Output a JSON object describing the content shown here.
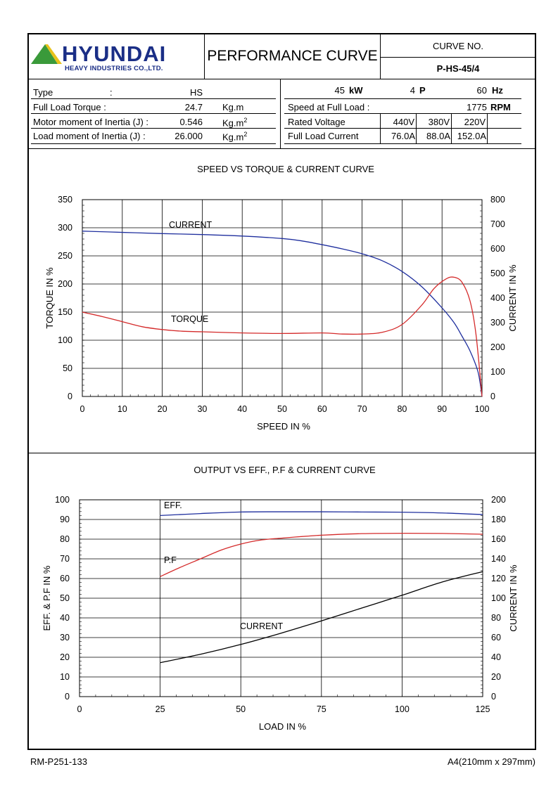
{
  "header": {
    "logo_name": "HYUNDAI",
    "logo_sub": "HEAVY INDUSTRIES CO.,LTD.",
    "title": "PERFORMANCE CURVE",
    "curve_no_label": "CURVE NO.",
    "curve_no": "P-HS-45/4",
    "colors": {
      "logo_blue": "#1a2e86",
      "logo_green": "#3a9a3a",
      "logo_yellow": "#e8c21a"
    }
  },
  "specs_left": [
    {
      "label": "Type",
      "colon": ":",
      "value": "HS",
      "unit": ""
    },
    {
      "label": "Full Load Torque :",
      "colon": "",
      "value": "24.7",
      "unit": "Kg.m"
    },
    {
      "label": "Motor moment of Inertia (J) :",
      "colon": "",
      "value": "0.546",
      "unit": "Kg.m",
      "unit_sup": "2"
    },
    {
      "label": "Load moment of Inertia (J) :",
      "colon": "",
      "value": "26.000",
      "unit": "Kg.m",
      "unit_sup": "2"
    }
  ],
  "specs_right": {
    "power": "45",
    "power_unit": "kW",
    "poles": "4",
    "poles_unit": "P",
    "freq": "60",
    "freq_unit": "Hz",
    "speed_label": "Speed at Full Load :",
    "speed": "1775",
    "speed_unit": "RPM",
    "voltage_label": "Rated Voltage",
    "voltages": [
      "440V",
      "380V",
      "220V"
    ],
    "current_label": "Full Load Current",
    "currents": [
      "76.0A",
      "88.0A",
      "152.0A"
    ]
  },
  "footer": {
    "left": "RM-P251-133",
    "right": "A4(210mm x 297mm)"
  },
  "chart_data": [
    {
      "type": "line",
      "title": "SPEED VS TORQUE & CURRENT CURVE",
      "xlabel": "SPEED IN %",
      "ylabel": "TORQUE IN %",
      "y2label": "CURRENT IN %",
      "xlim": [
        0,
        100
      ],
      "ylim": [
        0,
        350
      ],
      "y2lim": [
        0,
        800
      ],
      "xticks": [
        0,
        10,
        20,
        30,
        40,
        50,
        60,
        70,
        80,
        90,
        100
      ],
      "yticks": [
        0,
        50,
        100,
        150,
        200,
        250,
        300,
        350
      ],
      "y2ticks": [
        0,
        100,
        200,
        300,
        400,
        500,
        600,
        700,
        800
      ],
      "grid": true,
      "series": [
        {
          "name": "CURRENT",
          "axis": "y2",
          "color": "#1f2f9e",
          "x": [
            0,
            10,
            20,
            30,
            40,
            50,
            55,
            60,
            65,
            70,
            75,
            80,
            85,
            90,
            93,
            95,
            97,
            99,
            100
          ],
          "y": [
            672,
            667,
            662,
            658,
            652,
            642,
            632,
            617,
            600,
            580,
            552,
            508,
            445,
            360,
            300,
            245,
            185,
            100,
            0
          ]
        },
        {
          "name": "TORQUE",
          "axis": "y",
          "color": "#d42a2a",
          "x": [
            0,
            5,
            10,
            15,
            20,
            25,
            30,
            40,
            50,
            60,
            65,
            70,
            75,
            80,
            85,
            88,
            91,
            93,
            95,
            97,
            98.5,
            100
          ],
          "y": [
            150,
            142,
            133,
            124,
            119,
            116,
            115,
            113,
            112,
            113,
            111,
            111,
            114,
            128,
            163,
            192,
            209,
            212,
            203,
            170,
            110,
            0
          ]
        }
      ],
      "annotations": [
        "CURRENT",
        "TORQUE"
      ]
    },
    {
      "type": "line",
      "title": "OUTPUT VS EFF., P.F & CURRENT CURVE",
      "xlabel": "LOAD IN %",
      "ylabel": "EFF. & P.F IN %",
      "y2label": "CURRENT IN %",
      "xlim": [
        0,
        125
      ],
      "ylim": [
        0,
        100
      ],
      "y2lim": [
        0,
        200
      ],
      "xticks": [
        0,
        25,
        50,
        75,
        100,
        125
      ],
      "yticks": [
        0,
        10,
        20,
        30,
        40,
        50,
        60,
        70,
        80,
        90,
        100
      ],
      "y2ticks": [
        0,
        20,
        40,
        60,
        80,
        100,
        120,
        140,
        160,
        180,
        200
      ],
      "grid": true,
      "series": [
        {
          "name": "EFF.",
          "axis": "y",
          "color": "#1f2f9e",
          "x": [
            25,
            37.5,
            50,
            62.5,
            75,
            87.5,
            100,
            112.5,
            125
          ],
          "y": [
            92,
            93,
            93.8,
            93.9,
            93.9,
            93.8,
            93.7,
            93.3,
            92.5
          ]
        },
        {
          "name": "P.F",
          "axis": "y",
          "color": "#d42a2a",
          "x": [
            25,
            31,
            37.5,
            44,
            50,
            56,
            62.5,
            75,
            87.5,
            100,
            112.5,
            125
          ],
          "y": [
            61,
            65.5,
            70,
            74.5,
            77.5,
            79.5,
            80.5,
            82,
            82.8,
            83,
            82.9,
            82.5
          ]
        },
        {
          "name": "CURRENT",
          "axis": "y2",
          "color": "#000000",
          "x": [
            25,
            37.5,
            50,
            62.5,
            75,
            87.5,
            100,
            112.5,
            125
          ],
          "y": [
            34.5,
            43,
            53,
            64.5,
            77,
            90,
            103,
            116.5,
            127
          ]
        }
      ],
      "annotations": [
        "EFF.",
        "P.F",
        "CURRENT"
      ]
    }
  ]
}
